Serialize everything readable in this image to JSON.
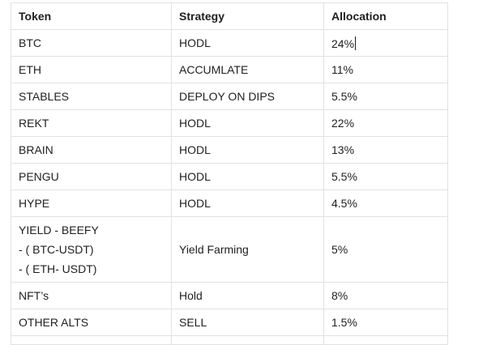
{
  "table": {
    "headers": {
      "token": "Token",
      "strategy": "Strategy",
      "allocation": "Allocation"
    },
    "rows": [
      {
        "token": "BTC",
        "strategy": "HODL",
        "allocation": "24%"
      },
      {
        "token": "ETH",
        "strategy": "ACCUMLATE",
        "allocation": "11%"
      },
      {
        "token": "STABLES",
        "strategy": "DEPLOY ON DIPS",
        "allocation": "5.5%"
      },
      {
        "token": "REKT",
        "strategy": "HODL",
        "allocation": "22%"
      },
      {
        "token": "BRAIN",
        "strategy": "HODL",
        "allocation": "13%"
      },
      {
        "token": "PENGU",
        "strategy": "HODL",
        "allocation": "5.5%"
      },
      {
        "token": "HYPE",
        "strategy": "HODL",
        "allocation": "4.5%"
      },
      {
        "token_lines": [
          "YIELD - BEEFY",
          "- ( BTC-USDT)",
          "- ( ETH- USDT)"
        ],
        "strategy": "Yield Farming",
        "allocation": "5%"
      },
      {
        "token": "NFT’s",
        "strategy": "Hold",
        "allocation": "8%"
      },
      {
        "token": "OTHER ALTS",
        "strategy": "SELL",
        "allocation": "1.5%"
      }
    ]
  }
}
